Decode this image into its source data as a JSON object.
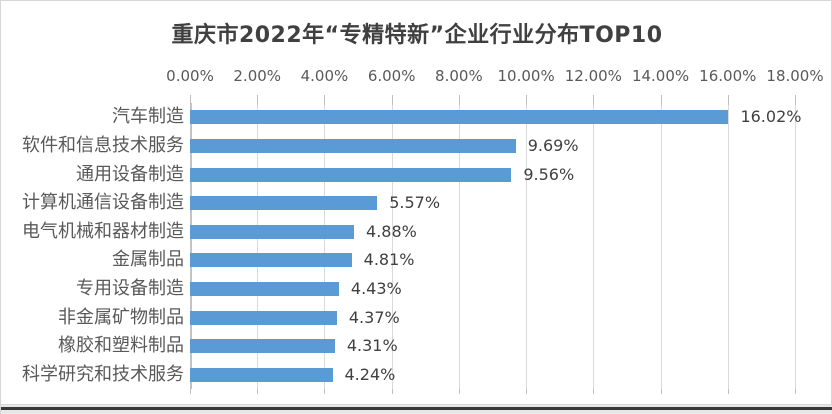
{
  "window": {
    "background": "#ffffff",
    "border_color": "#d6d6d6",
    "bottom_bar_color": "#383838",
    "bottom_strip_color": "#e7e7e7"
  },
  "chart_data": {
    "type": "bar",
    "orientation": "horizontal",
    "title": "重庆市2022年“专精特新”企业行业分布TOP10",
    "categories": [
      "汽车制造",
      "软件和信息技术服务",
      "通用设备制造",
      "计算机通信设备制造",
      "电气机械和器材制造",
      "金属制品",
      "专用设备制造",
      "非金属矿物制品",
      "橡胶和塑料制品",
      "科学研究和技术服务"
    ],
    "values": [
      16.02,
      9.69,
      9.56,
      5.57,
      4.88,
      4.81,
      4.43,
      4.37,
      4.31,
      4.24
    ],
    "data_labels": [
      "16.02%",
      "9.69%",
      "9.56%",
      "5.57%",
      "4.88%",
      "4.81%",
      "4.43%",
      "4.37%",
      "4.31%",
      "4.24%"
    ],
    "xlabel": "",
    "ylabel": "",
    "xlim": [
      0,
      18
    ],
    "x_tick_step": 2,
    "x_tick_labels": [
      "0.00%",
      "2.00%",
      "4.00%",
      "6.00%",
      "8.00%",
      "10.00%",
      "12.00%",
      "14.00%",
      "16.00%",
      "18.00%"
    ],
    "grid": true,
    "legend": false,
    "value_axis_position": "top",
    "bar_color": "#5b9bd5",
    "gridline_color": "#d9d9d9",
    "tick_color": "#bfbfbf",
    "category_label_color": "#595959",
    "tick_label_color": "#595959",
    "value_label_color": "#404040",
    "title_color": "#404040"
  }
}
